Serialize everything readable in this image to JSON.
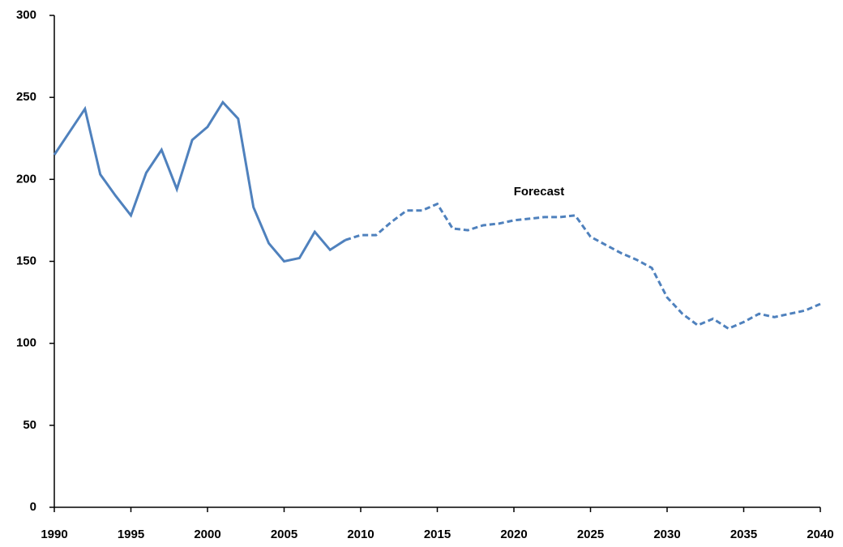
{
  "chart_data": {
    "type": "line",
    "annotation": "Forecast",
    "x": [
      1990,
      1991,
      1992,
      1993,
      1994,
      1995,
      1996,
      1997,
      1998,
      1999,
      2000,
      2001,
      2002,
      2003,
      2004,
      2005,
      2006,
      2007,
      2008,
      2009,
      2010,
      2011,
      2012,
      2013,
      2014,
      2015,
      2016,
      2017,
      2018,
      2019,
      2020,
      2021,
      2022,
      2023,
      2024,
      2025,
      2026,
      2027,
      2028,
      2029,
      2030,
      2031,
      2032,
      2033,
      2034,
      2035,
      2036,
      2037,
      2038,
      2039,
      2040
    ],
    "series": [
      {
        "color": "#4f81bd",
        "dashed": false,
        "values": [
          215,
          229,
          243,
          203,
          190,
          178,
          204,
          218,
          194,
          224,
          232,
          247,
          237,
          183,
          161,
          150,
          152,
          168,
          157,
          163,
          null,
          null,
          null,
          null,
          null,
          null,
          null,
          null,
          null,
          null,
          null,
          null,
          null,
          null,
          null,
          null,
          null,
          null,
          null,
          null,
          null,
          null,
          null,
          null,
          null,
          null,
          null,
          null,
          null,
          null,
          null
        ]
      },
      {
        "color": "#4f81bd",
        "dashed": true,
        "values": [
          null,
          null,
          null,
          null,
          null,
          null,
          null,
          null,
          null,
          null,
          null,
          null,
          null,
          null,
          null,
          null,
          null,
          null,
          null,
          163,
          166,
          166,
          174,
          181,
          181,
          185,
          170,
          169,
          172,
          173,
          175,
          176,
          177,
          177,
          178,
          165,
          160,
          155,
          151,
          146,
          128,
          118,
          111,
          115,
          109,
          113,
          118,
          116,
          118,
          120,
          124
        ]
      }
    ],
    "xlim": [
      1990,
      2040
    ],
    "xticks": [
      1990,
      1995,
      2000,
      2005,
      2010,
      2015,
      2020,
      2025,
      2030,
      2035,
      2040
    ],
    "ylim": [
      0,
      300
    ],
    "yticks": [
      0,
      50,
      100,
      150,
      200,
      250,
      300
    ],
    "grid": false
  }
}
